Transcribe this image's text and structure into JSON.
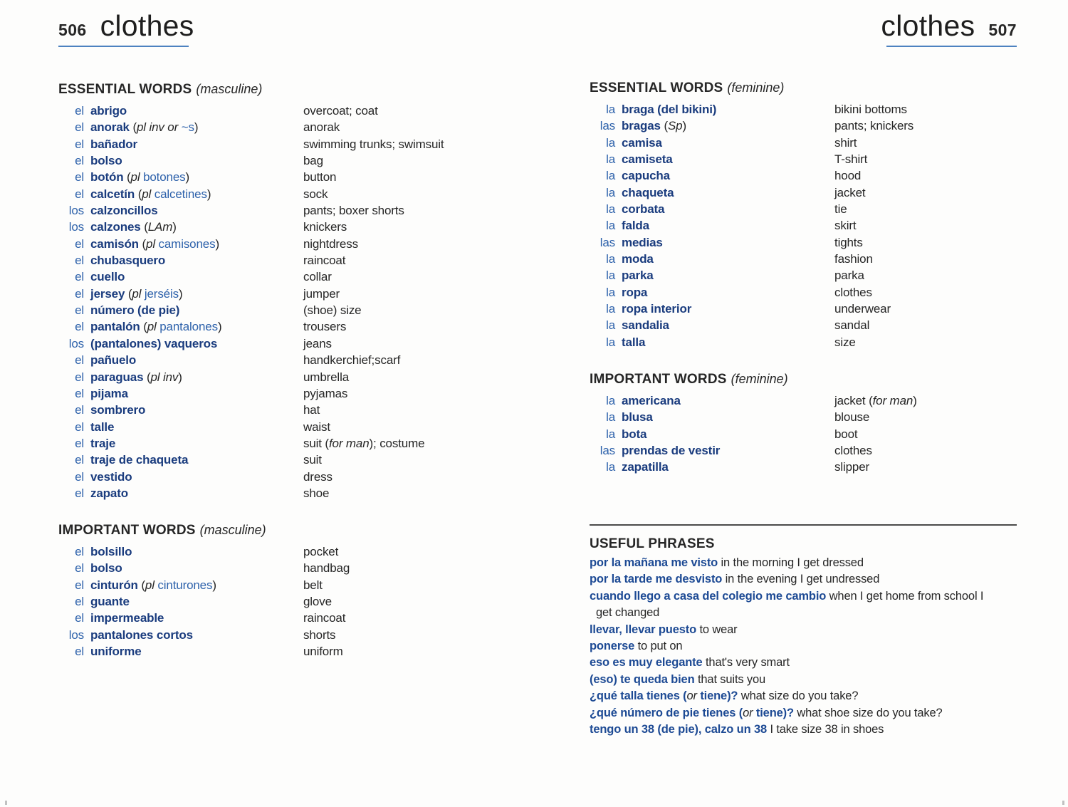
{
  "colors": {
    "article_blue": "#2e62ab",
    "headword_navy": "#1a3c7e",
    "phrase_blue": "#1d4a94",
    "rule_blue": "#4d82c0",
    "ink": "#262626"
  },
  "pages": {
    "left": {
      "page_number": "506",
      "title": "clothes",
      "sections": [
        {
          "heading": "ESSENTIAL WORDS",
          "gender_note": "(masculine)",
          "entries": [
            {
              "article": "el",
              "word": "abrigo",
              "trans": "overcoat; coat"
            },
            {
              "article": "el",
              "word": "anorak",
              "noteItalic": "pl inv or",
              "noteBlue": "~s",
              "trans": "anorak"
            },
            {
              "article": "el",
              "word": "bañador",
              "trans": "swimming trunks; swimsuit"
            },
            {
              "article": "el",
              "word": "bolso",
              "trans": "bag"
            },
            {
              "article": "el",
              "word": "botón",
              "noteItalic": "pl",
              "noteBlue": "botones",
              "trans": "button"
            },
            {
              "article": "el",
              "word": "calcetín",
              "noteItalic": "pl",
              "noteBlue": "calcetines",
              "trans": "sock"
            },
            {
              "article": "los",
              "word": "calzoncillos",
              "trans": "pants; boxer shorts"
            },
            {
              "article": "los",
              "word": "calzones",
              "noteItalic": "LAm",
              "trans": "knickers"
            },
            {
              "article": "el",
              "word": "camisón",
              "noteItalic": "pl",
              "noteBlue": "camisones",
              "trans": "nightdress"
            },
            {
              "article": "el",
              "word": "chubasquero",
              "trans": "raincoat"
            },
            {
              "article": "el",
              "word": "cuello",
              "trans": "collar"
            },
            {
              "article": "el",
              "word": "jersey",
              "noteItalic": "pl",
              "noteBlue": "jerséis",
              "trans": "jumper"
            },
            {
              "article": "el",
              "word": "número (de pie)",
              "trans": "(shoe) size"
            },
            {
              "article": "el",
              "word": "pantalón",
              "noteItalic": "pl",
              "noteBlue": "pantalones",
              "trans": "trousers"
            },
            {
              "article": "los",
              "word": "(pantalones) vaqueros",
              "trans": "jeans"
            },
            {
              "article": "el",
              "word": "pañuelo",
              "trans": "handkerchief;scarf"
            },
            {
              "article": "el",
              "word": "paraguas",
              "noteItalic": "pl inv",
              "trans": "umbrella"
            },
            {
              "article": "el",
              "word": "pijama",
              "trans": "pyjamas"
            },
            {
              "article": "el",
              "word": "sombrero",
              "trans": "hat"
            },
            {
              "article": "el",
              "word": "talle",
              "trans": "waist"
            },
            {
              "article": "el",
              "word": "traje",
              "trans": "suit (",
              "transItalic": "for man",
              "transPost": "); costume"
            },
            {
              "article": "el",
              "word": "traje de chaqueta",
              "trans": "suit"
            },
            {
              "article": "el",
              "word": "vestido",
              "trans": "dress"
            },
            {
              "article": "el",
              "word": "zapato",
              "trans": "shoe"
            }
          ]
        },
        {
          "heading": "IMPORTANT WORDS",
          "gender_note": "(masculine)",
          "entries": [
            {
              "article": "el",
              "word": "bolsillo",
              "trans": "pocket"
            },
            {
              "article": "el",
              "word": "bolso",
              "trans": "handbag"
            },
            {
              "article": "el",
              "word": "cinturón",
              "noteItalic": "pl",
              "noteBlue": "cinturones",
              "trans": "belt"
            },
            {
              "article": "el",
              "word": "guante",
              "trans": "glove"
            },
            {
              "article": "el",
              "word": "impermeable",
              "trans": "raincoat"
            },
            {
              "article": "los",
              "word": "pantalones cortos",
              "trans": "shorts"
            },
            {
              "article": "el",
              "word": "uniforme",
              "trans": "uniform"
            }
          ]
        }
      ]
    },
    "right": {
      "page_number": "507",
      "title": "clothes",
      "sections": [
        {
          "heading": "ESSENTIAL WORDS",
          "gender_note": "(feminine)",
          "entries": [
            {
              "article": "la",
              "word": "braga (del bikini)",
              "trans": "bikini bottoms"
            },
            {
              "article": "las",
              "word": "bragas",
              "noteItalic": "Sp",
              "trans": "pants; knickers"
            },
            {
              "article": "la",
              "word": "camisa",
              "trans": "shirt"
            },
            {
              "article": "la",
              "word": "camiseta",
              "trans": "T-shirt"
            },
            {
              "article": "la",
              "word": "capucha",
              "trans": "hood"
            },
            {
              "article": "la",
              "word": "chaqueta",
              "trans": "jacket"
            },
            {
              "article": "la",
              "word": "corbata",
              "trans": "tie"
            },
            {
              "article": "la",
              "word": "falda",
              "trans": "skirt"
            },
            {
              "article": "las",
              "word": "medias",
              "trans": "tights"
            },
            {
              "article": "la",
              "word": "moda",
              "trans": "fashion"
            },
            {
              "article": "la",
              "word": "parka",
              "trans": "parka"
            },
            {
              "article": "la",
              "word": "ropa",
              "trans": "clothes"
            },
            {
              "article": "la",
              "word": "ropa interior",
              "trans": "underwear"
            },
            {
              "article": "la",
              "word": "sandalia",
              "trans": "sandal"
            },
            {
              "article": "la",
              "word": "talla",
              "trans": "size"
            }
          ]
        },
        {
          "heading": "IMPORTANT WORDS",
          "gender_note": "(feminine)",
          "entries": [
            {
              "article": "la",
              "word": "americana",
              "trans": "jacket (",
              "transItalic": "for man",
              "transPost": ")"
            },
            {
              "article": "la",
              "word": "blusa",
              "trans": "blouse"
            },
            {
              "article": "la",
              "word": "bota",
              "trans": "boot"
            },
            {
              "article": "las",
              "word": "prendas de vestir",
              "trans": "clothes"
            },
            {
              "article": "la",
              "word": "zapatilla",
              "trans": "slipper"
            }
          ]
        }
      ],
      "phrases_heading": "USEFUL PHRASES",
      "phrases": [
        {
          "es": "por la mañana me visto",
          "en": "in the morning I get dressed"
        },
        {
          "es": "por la tarde me desvisto",
          "en": "in the evening I get undressed"
        },
        {
          "es": "cuando llego a casa del colegio me cambio",
          "en": "when I get home from school I get changed"
        },
        {
          "es": "llevar, llevar puesto",
          "en": "to wear"
        },
        {
          "es": "ponerse",
          "en": "to put on"
        },
        {
          "es": "eso es muy elegante",
          "en": "that's very smart"
        },
        {
          "es": "(eso) te queda bien",
          "en": "that suits you"
        },
        {
          "es": "¿qué talla tienes (",
          "orItalic": "or",
          "es2": " tiene)?",
          "en": "what size do you take?"
        },
        {
          "es": "¿qué número de pie tienes (",
          "orItalic": "or",
          "es2": " tiene)?",
          "en": "what shoe size do you take?"
        },
        {
          "es": "tengo un 38 (de pie), calzo un 38",
          "en": "I take size 38 in shoes"
        }
      ]
    }
  }
}
